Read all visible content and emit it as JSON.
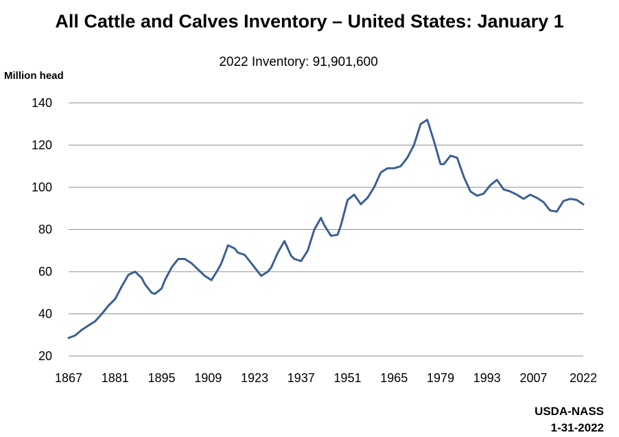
{
  "chart_data": {
    "type": "line",
    "title": "All Cattle and Calves Inventory – United States: January 1",
    "subtitle": "2022 Inventory: 91,901,600",
    "ylabel": "Million head",
    "xlabel": "",
    "ylim": [
      20,
      140
    ],
    "xlim": [
      1867,
      2022
    ],
    "yticks": [
      20,
      40,
      60,
      80,
      100,
      120,
      140
    ],
    "xticks": [
      1867,
      1881,
      1895,
      1909,
      1923,
      1937,
      1951,
      1965,
      1979,
      1993,
      2007,
      2022
    ],
    "grid": true,
    "legend": "none",
    "line_color": "#3a5f94",
    "series": [
      {
        "x": [
          1867,
          1869,
          1871,
          1873,
          1875,
          1877,
          1879,
          1881,
          1883,
          1885,
          1887,
          1889,
          1890,
          1892,
          1893,
          1895,
          1896,
          1898,
          1900,
          1902,
          1904,
          1906,
          1908,
          1910,
          1912,
          1913,
          1915,
          1917,
          1918,
          1920,
          1921,
          1923,
          1925,
          1927,
          1928,
          1930,
          1932,
          1934,
          1935,
          1937,
          1939,
          1941,
          1943,
          1944,
          1946,
          1948,
          1949,
          1951,
          1953,
          1955,
          1957,
          1959,
          1961,
          1963,
          1965,
          1967,
          1969,
          1971,
          1973,
          1975,
          1977,
          1979,
          1980,
          1982,
          1984,
          1986,
          1988,
          1990,
          1992,
          1994,
          1996,
          1998,
          2000,
          2002,
          2004,
          2006,
          2008,
          2010,
          2012,
          2014,
          2016,
          2018,
          2020,
          2022
        ],
        "values": [
          28.6,
          29.8,
          32.5,
          34.5,
          36.5,
          40.0,
          43.9,
          47.0,
          53.0,
          58.5,
          60.0,
          57.0,
          54.0,
          50.0,
          49.5,
          52.0,
          56.0,
          62.0,
          66.0,
          66.0,
          64.0,
          61.0,
          58.0,
          56.0,
          61.0,
          64.0,
          72.5,
          71.0,
          69.0,
          68.0,
          66.0,
          62.0,
          58.0,
          60.0,
          62.0,
          69.0,
          74.5,
          67.5,
          66.0,
          65.0,
          70.0,
          80.0,
          85.5,
          82.0,
          77.0,
          77.5,
          82.0,
          94.0,
          96.5,
          92.0,
          95.0,
          100.0,
          107.0,
          109.0,
          109.0,
          110.0,
          114.0,
          120.0,
          130.0,
          132.0,
          122.0,
          111.0,
          111.0,
          115.0,
          114.0,
          105.0,
          98.0,
          96.0,
          97.0,
          101.0,
          103.5,
          99.0,
          98.0,
          96.5,
          94.5,
          96.5,
          95.0,
          93.0,
          89.0,
          88.5,
          93.5,
          94.5,
          94.0,
          91.9
        ]
      }
    ]
  },
  "source": {
    "line1": "USDA-NASS",
    "line2": "1-31-2022"
  }
}
